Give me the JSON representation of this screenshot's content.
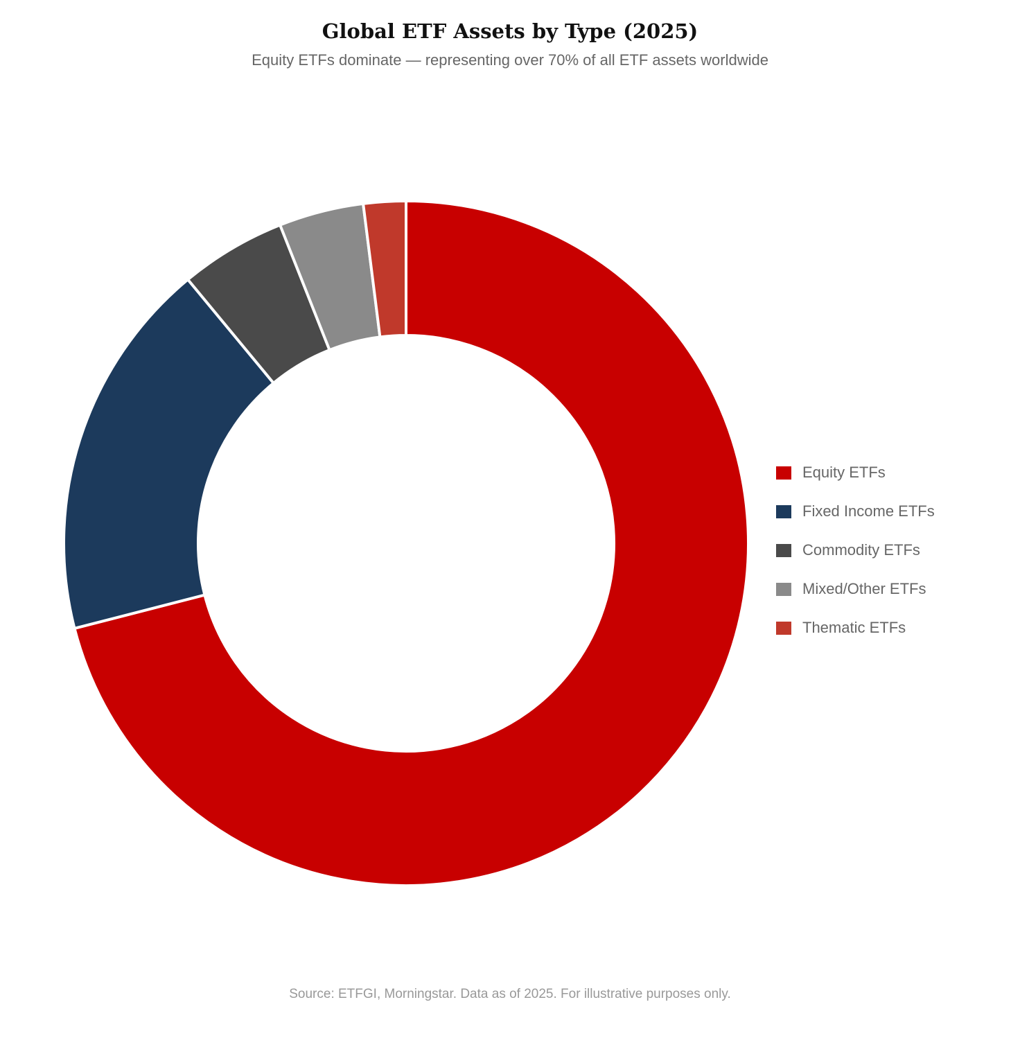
{
  "chart_data": {
    "type": "pie",
    "variant": "donut",
    "title": "Global ETF Assets by Type (2025)",
    "subtitle": "Equity ETFs dominate — representing over 70% of all ETF assets worldwide",
    "source": "Source: ETFGI, Morningstar. Data as of 2025. For illustrative purposes only.",
    "legend_position": "right",
    "categories": [
      "Equity ETFs",
      "Fixed Income ETFs",
      "Commodity ETFs",
      "Mixed/Other ETFs",
      "Thematic ETFs"
    ],
    "values": [
      71,
      18,
      5,
      4,
      2
    ],
    "colors": [
      "#c80000",
      "#1c3a5c",
      "#4a4a4a",
      "#8a8a8a",
      "#c0392b"
    ]
  }
}
